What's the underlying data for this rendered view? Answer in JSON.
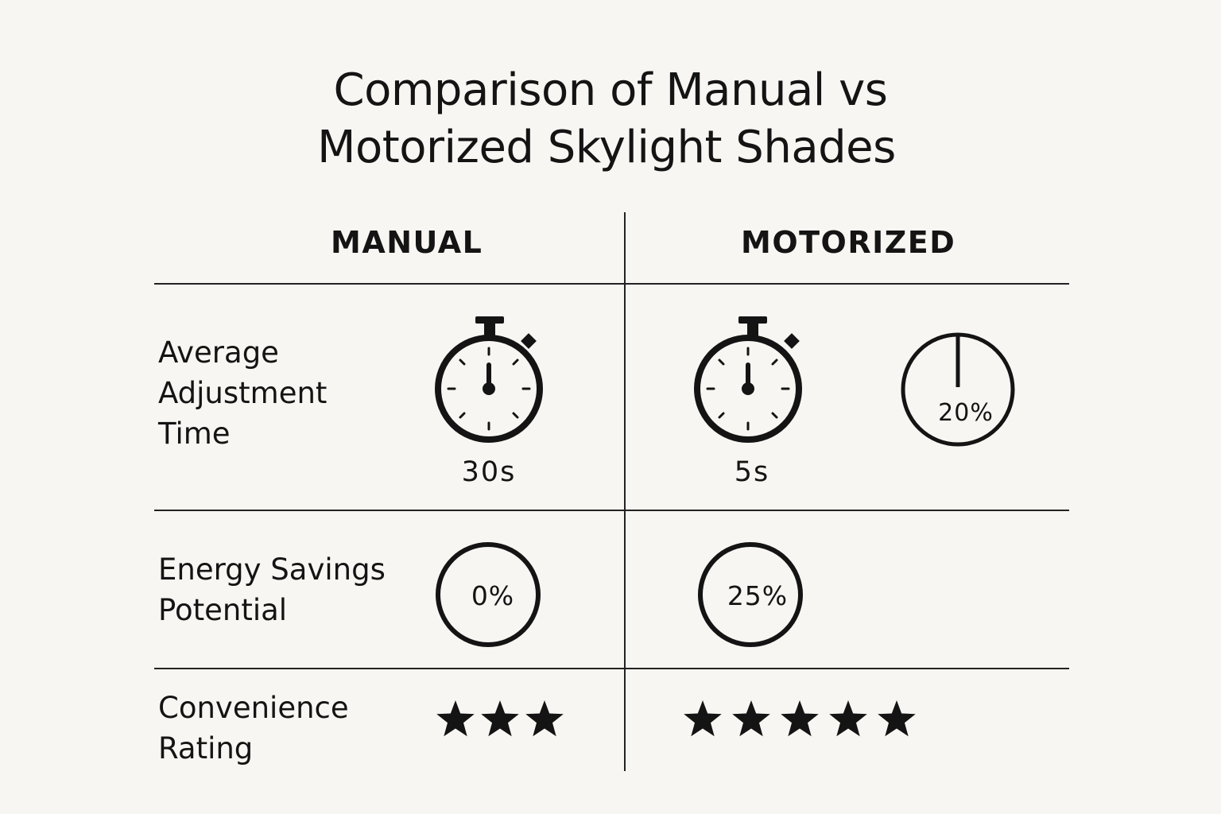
{
  "title": {
    "line1": "Comparison of Manual vs",
    "line2": "Motorized Skylight Shades"
  },
  "columns": {
    "manual": "MANUAL",
    "motorized": "MOTORIZED"
  },
  "rows": {
    "adjustment_time": {
      "label_lines": [
        "Average",
        "Adjustment",
        "Time"
      ],
      "manual_value": "30s",
      "motorized_value": "5s",
      "motorized_extra_percent": "20%",
      "icons": [
        "stopwatch-icon",
        "stopwatch-icon",
        "percent-gauge-icon"
      ]
    },
    "energy_savings": {
      "label_lines": [
        "Energy Savings",
        "Potential"
      ],
      "manual_value": "0%",
      "motorized_value": "25%"
    },
    "convenience": {
      "label_lines": [
        "Convenience",
        "Rating"
      ],
      "manual_stars": 3.5,
      "motorized_stars": 5,
      "max_stars": 5
    }
  },
  "colors": {
    "background": "#f8f6f2",
    "ink": "#141414"
  }
}
